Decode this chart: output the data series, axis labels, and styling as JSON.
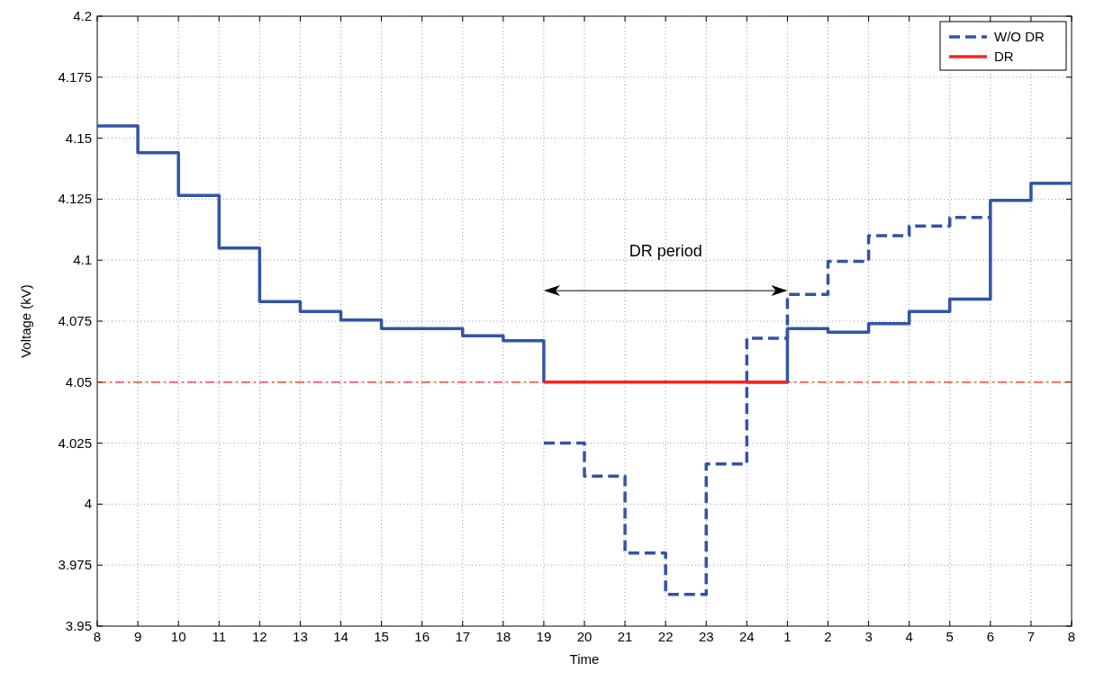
{
  "chart_data": {
    "type": "step",
    "xlabel": "Time",
    "ylabel": "Voltage (kV)",
    "categories": [
      "8",
      "9",
      "10",
      "11",
      "12",
      "13",
      "14",
      "15",
      "16",
      "17",
      "18",
      "19",
      "20",
      "21",
      "22",
      "23",
      "24",
      "1",
      "2",
      "3",
      "4",
      "5",
      "6",
      "7",
      "8"
    ],
    "ylim": [
      3.95,
      4.2
    ],
    "yticks": [
      3.95,
      3.975,
      4,
      4.025,
      4.05,
      4.075,
      4.1,
      4.125,
      4.15,
      4.175,
      4.2
    ],
    "grid": true,
    "legend": "top right",
    "series": [
      {
        "color": "#3155a5",
        "line_style": "solid",
        "values": [
          4.155,
          4.144,
          4.1265,
          4.105,
          4.083,
          4.079,
          4.0755,
          4.072,
          4.072,
          4.069,
          4.067,
          4.05,
          null,
          null,
          null,
          null,
          4.05,
          4.072,
          4.0705,
          4.074,
          4.079,
          4.084,
          4.1245,
          4.1315,
          4.1315
        ]
      },
      {
        "name": "W/O DR",
        "color": "#3155a5",
        "line_style": "dashed",
        "values": [
          null,
          null,
          null,
          null,
          null,
          null,
          null,
          null,
          null,
          null,
          null,
          4.025,
          4.0115,
          3.98,
          3.963,
          4.0165,
          4.068,
          4.086,
          4.0995,
          4.11,
          4.114,
          4.1175,
          4.1175,
          null,
          null
        ]
      },
      {
        "name": "DR",
        "color": "#ff2020",
        "line_style": "solid",
        "values": [
          null,
          null,
          null,
          null,
          null,
          null,
          null,
          null,
          null,
          null,
          null,
          4.05,
          4.05,
          4.05,
          4.05,
          4.05,
          4.05,
          4.05,
          null,
          null,
          null,
          null,
          null,
          null,
          null
        ]
      }
    ],
    "ref_lines": [
      {
        "axis": "y",
        "value": 4.05,
        "color": "#ff2020",
        "line_style": "dashed"
      }
    ],
    "annotations": [
      "DR period"
    ]
  }
}
